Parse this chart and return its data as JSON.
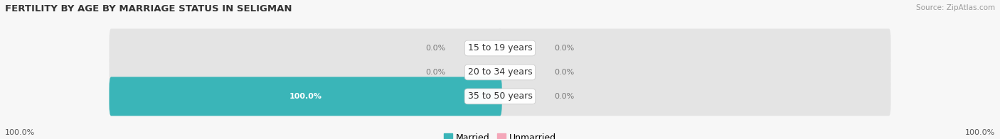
{
  "title": "FERTILITY BY AGE BY MARRIAGE STATUS IN SELIGMAN",
  "source": "Source: ZipAtlas.com",
  "categories": [
    "15 to 19 years",
    "20 to 34 years",
    "35 to 50 years"
  ],
  "married_values": [
    0.0,
    0.0,
    100.0
  ],
  "unmarried_values": [
    0.0,
    0.0,
    0.0
  ],
  "married_color": "#3ab5b8",
  "unmarried_color": "#f4a7b9",
  "bar_background": "#e4e4e4",
  "bar_height": 0.62,
  "legend_married": "Married",
  "legend_unmarried": "Unmarried",
  "title_fontsize": 9.5,
  "label_fontsize": 8,
  "category_fontsize": 9,
  "axis_label_left": "100.0%",
  "axis_label_right": "100.0%",
  "background_color": "#f7f7f7"
}
